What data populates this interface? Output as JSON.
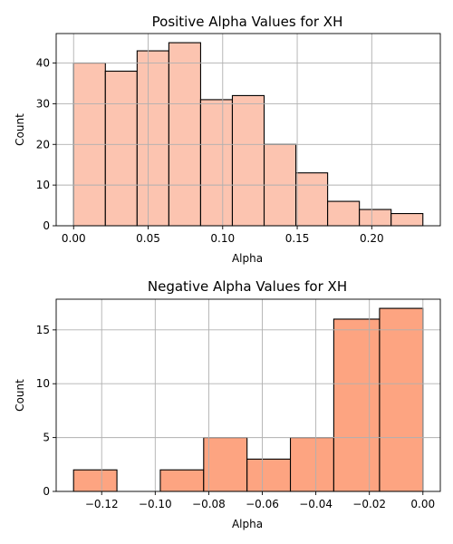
{
  "chart_data": [
    {
      "type": "bar",
      "title": "Positive Alpha Values for XH",
      "xlabel": "Alpha",
      "ylabel": "Count",
      "bin_edges": [
        0.0,
        0.0213,
        0.0426,
        0.0639,
        0.0852,
        0.1065,
        0.1278,
        0.1491,
        0.1704,
        0.1917,
        0.213,
        0.2343
      ],
      "values": [
        40,
        38,
        43,
        45,
        31,
        32,
        20,
        13,
        6,
        4,
        3
      ],
      "xlim": [
        -0.0117,
        0.246
      ],
      "ylim": [
        0,
        47.25
      ],
      "xticks": [
        0.0,
        0.05,
        0.1,
        0.15,
        0.2
      ],
      "xtick_labels": [
        "0.00",
        "0.05",
        "0.10",
        "0.15",
        "0.20"
      ],
      "yticks": [
        0,
        10,
        20,
        30,
        40
      ],
      "ytick_labels": [
        "0",
        "10",
        "20",
        "30",
        "40"
      ],
      "grid": true,
      "color": "#fcc4b0"
    },
    {
      "type": "bar",
      "title": "Negative Alpha Values for XH",
      "xlabel": "Alpha",
      "ylabel": "Count",
      "bin_edges": [
        -0.1305,
        -0.1143,
        -0.0981,
        -0.0819,
        -0.0657,
        -0.0495,
        -0.0333,
        -0.0162,
        0.0
      ],
      "values": [
        2,
        0,
        2,
        5,
        3,
        5,
        16,
        17
      ],
      "xlim": [
        -0.137,
        0.0065
      ],
      "ylim": [
        0,
        17.85
      ],
      "xticks": [
        -0.12,
        -0.1,
        -0.08,
        -0.06,
        -0.04,
        -0.02,
        0.0
      ],
      "xtick_labels": [
        "−0.12",
        "−0.10",
        "−0.08",
        "−0.06",
        "−0.04",
        "−0.02",
        "0.00"
      ],
      "yticks": [
        0,
        5,
        10,
        15
      ],
      "ytick_labels": [
        "0",
        "5",
        "10",
        "15"
      ],
      "grid": true,
      "color": "#fda481"
    }
  ]
}
